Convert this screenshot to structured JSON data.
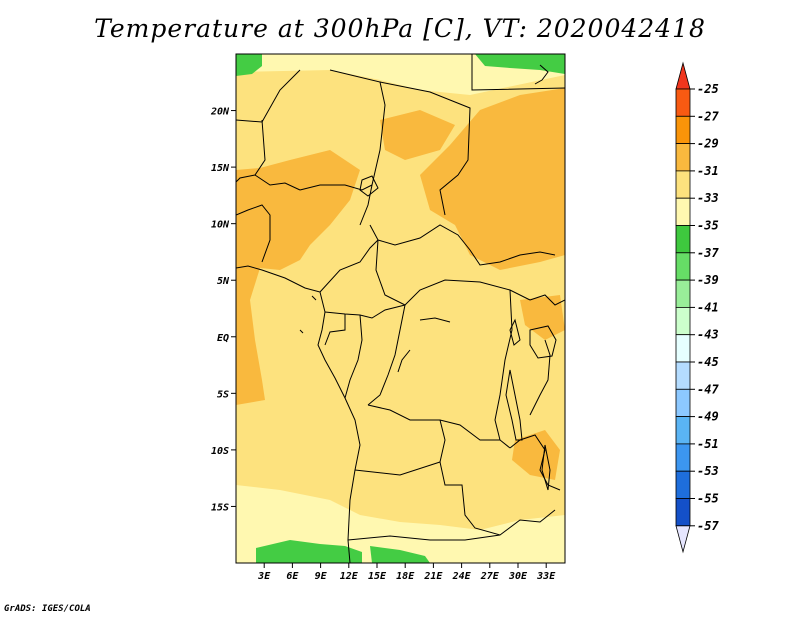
{
  "title": "Temperature at 300hPa [C], VT: 2020042418",
  "credit": "GrADS: IGES/COLA",
  "map": {
    "lon_range": [
      0,
      35
    ],
    "lat_range": [
      -20,
      25
    ],
    "lat_ticks": [
      {
        "value": 20,
        "label": "20N"
      },
      {
        "value": 15,
        "label": "15N"
      },
      {
        "value": 10,
        "label": "10N"
      },
      {
        "value": 5,
        "label": "5N"
      },
      {
        "value": 0,
        "label": "EQ"
      },
      {
        "value": -5,
        "label": "5S"
      },
      {
        "value": -10,
        "label": "10S"
      },
      {
        "value": -15,
        "label": "15S"
      }
    ],
    "lon_ticks": [
      {
        "value": 3,
        "label": "3E"
      },
      {
        "value": 6,
        "label": "6E"
      },
      {
        "value": 9,
        "label": "9E"
      },
      {
        "value": 12,
        "label": "12E"
      },
      {
        "value": 15,
        "label": "15E"
      },
      {
        "value": 18,
        "label": "18E"
      },
      {
        "value": 21,
        "label": "21E"
      },
      {
        "value": 24,
        "label": "24E"
      },
      {
        "value": 27,
        "label": "27E"
      },
      {
        "value": 30,
        "label": "30E"
      },
      {
        "value": 33,
        "label": "33E"
      }
    ],
    "colors": {
      "c29_31": "#f9b93e",
      "c31_33": "#fde27e",
      "c33_35": "#fff8b0",
      "c35_37": "#44cc44",
      "c37_39": "#66dd66",
      "border": "#000000"
    }
  },
  "colorbar": {
    "labels": [
      "-25",
      "-27",
      "-29",
      "-31",
      "-33",
      "-35",
      "-37",
      "-39",
      "-41",
      "-43",
      "-45",
      "-47",
      "-49",
      "-51",
      "-53",
      "-55",
      "-57"
    ],
    "top_arrow_color": "#f0361e",
    "bottom_arrow_color": "#e6e6ff",
    "colors": [
      "#f85a12",
      "#f99409",
      "#f9b93e",
      "#fde27e",
      "#fff8b0",
      "#3ec83e",
      "#66dd66",
      "#99ee99",
      "#ccffcc",
      "#e6ffff",
      "#b4dcff",
      "#8cc8ff",
      "#5ab4f4",
      "#3c96f0",
      "#1e6edc",
      "#1450c8",
      "#0a2896",
      "#0a0a6e"
    ]
  }
}
